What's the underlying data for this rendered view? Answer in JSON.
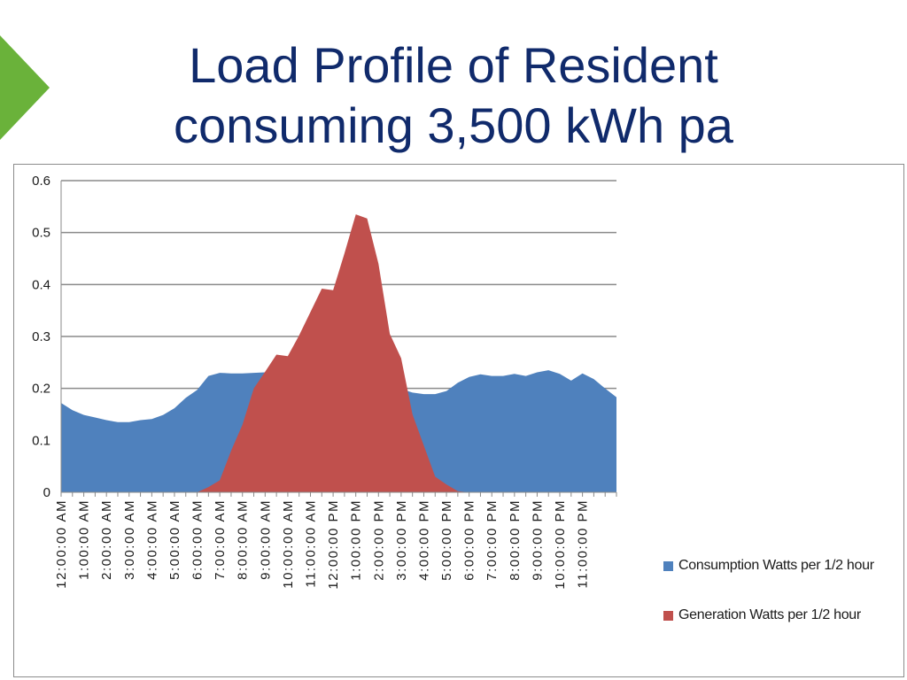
{
  "slide": {
    "title_line1": "Load Profile of Resident",
    "title_line2": "consuming 3,500 kWh pa",
    "accent_color": "#6ab23a",
    "title_color": "#102a6b"
  },
  "chart_data": {
    "type": "area",
    "title": "",
    "xlabel": "",
    "ylabel": "",
    "ylim": [
      0,
      0.6
    ],
    "yticks": [
      "0",
      "0.1",
      "0.2",
      "0.3",
      "0.4",
      "0.5",
      "0.6"
    ],
    "grid": true,
    "legend_position": "right",
    "x_tick_labels": [
      "12:00:00 AM",
      "1:00:00 AM",
      "2:00:00 AM",
      "3:00:00 AM",
      "4:00:00 AM",
      "5:00:00 AM",
      "6:00:00 AM",
      "7:00:00 AM",
      "8:00:00 AM",
      "9:00:00 AM",
      "10:00:00 AM",
      "11:00:00 AM",
      "12:00:00 PM",
      "1:00:00 PM",
      "2:00:00 PM",
      "3:00:00 PM",
      "4:00:00 PM",
      "5:00:00 PM",
      "6:00:00 PM",
      "7:00:00 PM",
      "8:00:00 PM",
      "9:00:00 PM",
      "10:00:00 PM",
      "11:00:00 PM"
    ],
    "series": [
      {
        "name": "Consumption  Watts per 1/2 hour",
        "color": "#4f81bd",
        "values": [
          0.172,
          0.158,
          0.149,
          0.144,
          0.139,
          0.135,
          0.135,
          0.139,
          0.141,
          0.149,
          0.162,
          0.182,
          0.197,
          0.224,
          0.23,
          0.229,
          0.229,
          0.23,
          0.231,
          0.233,
          0.237,
          0.24,
          0.24,
          0.233,
          0.222,
          0.216,
          0.217,
          0.213,
          0.209,
          0.205,
          0.199,
          0.192,
          0.189,
          0.189,
          0.195,
          0.211,
          0.222,
          0.227,
          0.224,
          0.224,
          0.228,
          0.224,
          0.231,
          0.235,
          0.228,
          0.215,
          0.229,
          0.218,
          0.2,
          0.183
        ]
      },
      {
        "name": "Generation Watts  per 1/2 hour",
        "color": "#c0504d",
        "values": [
          0,
          0,
          0,
          0,
          0,
          0,
          0,
          0,
          0,
          0,
          0,
          0,
          0,
          0.01,
          0.023,
          0.08,
          0.13,
          0.2,
          0.232,
          0.265,
          0.262,
          0.302,
          0.347,
          0.392,
          0.389,
          0.46,
          0.535,
          0.527,
          0.44,
          0.305,
          0.258,
          0.15,
          0.09,
          0.03,
          0.015,
          0.002,
          0,
          0,
          0,
          0,
          0,
          0,
          0,
          0,
          0,
          0,
          0,
          0,
          0,
          0
        ]
      }
    ]
  }
}
